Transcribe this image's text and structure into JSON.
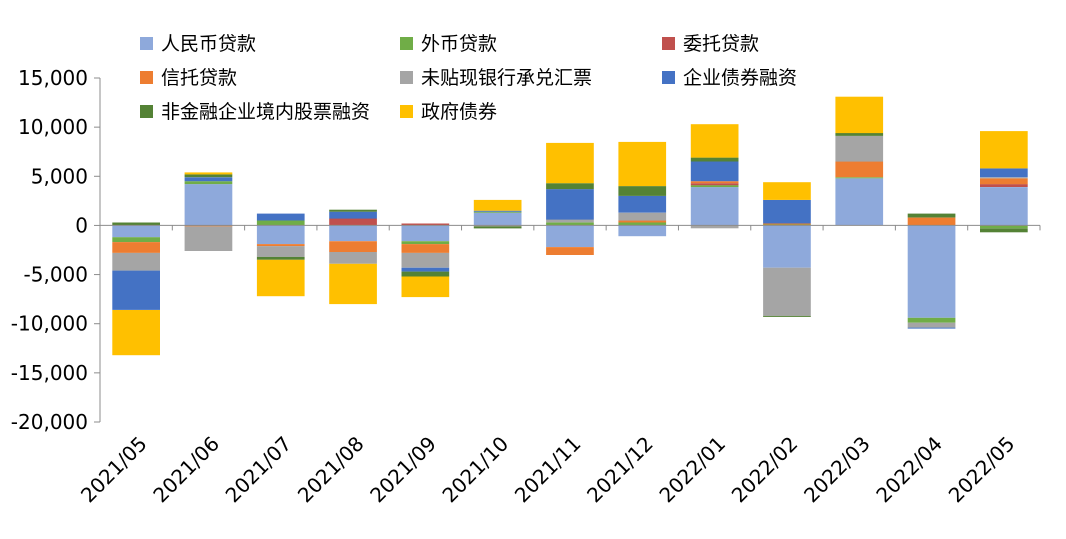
{
  "chart_data": {
    "type": "bar",
    "stacked": true,
    "categories": [
      "2021/05",
      "2021/06",
      "2021/07",
      "2021/08",
      "2021/09",
      "2021/10",
      "2021/11",
      "2021/12",
      "2022/01",
      "2022/02",
      "2022/03",
      "2022/04",
      "2022/05"
    ],
    "ylim": [
      -20000,
      15000
    ],
    "yticks": [
      15000,
      10000,
      5000,
      0,
      -5000,
      -10000,
      -15000,
      -20000
    ],
    "ytick_labels": [
      "15,000",
      "10,000",
      "5,000",
      "0",
      "-5,000",
      "-10,000",
      "-15,000",
      "-20,000"
    ],
    "legend_position": "top",
    "series": [
      {
        "name": "人民币贷款",
        "color": "#8EA9DB",
        "values": [
          -1200,
          4200,
          -1900,
          -1600,
          -1600,
          1300,
          -2200,
          -1100,
          3900,
          -4300,
          4800,
          -9400,
          3900
        ]
      },
      {
        "name": "外币贷款",
        "color": "#70AD47",
        "values": [
          -500,
          300,
          500,
          0,
          -300,
          100,
          300,
          300,
          200,
          100,
          100,
          -500,
          -300
        ]
      },
      {
        "name": "委托贷款",
        "color": "#C0504D",
        "values": [
          0,
          0,
          0,
          700,
          200,
          0,
          0,
          0,
          200,
          0,
          0,
          0,
          300
        ]
      },
      {
        "name": "信托贷款",
        "color": "#ED7D31",
        "values": [
          -1100,
          -100,
          -200,
          -1100,
          -900,
          0,
          -800,
          200,
          200,
          100,
          1600,
          800,
          600
        ]
      },
      {
        "name": "未贴现银行承兑汇票",
        "color": "#A5A5A5",
        "values": [
          -1800,
          -2500,
          -1100,
          -1200,
          -1500,
          -100,
          300,
          800,
          -300,
          -4900,
          2600,
          -500,
          100
        ]
      },
      {
        "name": "企业债券融资",
        "color": "#4472C4",
        "values": [
          -4000,
          400,
          700,
          700,
          -400,
          100,
          3100,
          1700,
          2000,
          2400,
          0,
          -100,
          900
        ]
      },
      {
        "name": "非金融企业境内股票融资",
        "color": "#548235",
        "values": [
          300,
          300,
          -300,
          200,
          -500,
          -200,
          600,
          1000,
          400,
          -100,
          300,
          400,
          -400
        ]
      },
      {
        "name": "政府债券",
        "color": "#FFC000",
        "values": [
          -4600,
          200,
          -3700,
          -4100,
          -2100,
          1100,
          4100,
          4500,
          3400,
          1800,
          3700,
          0,
          3800
        ]
      }
    ]
  }
}
